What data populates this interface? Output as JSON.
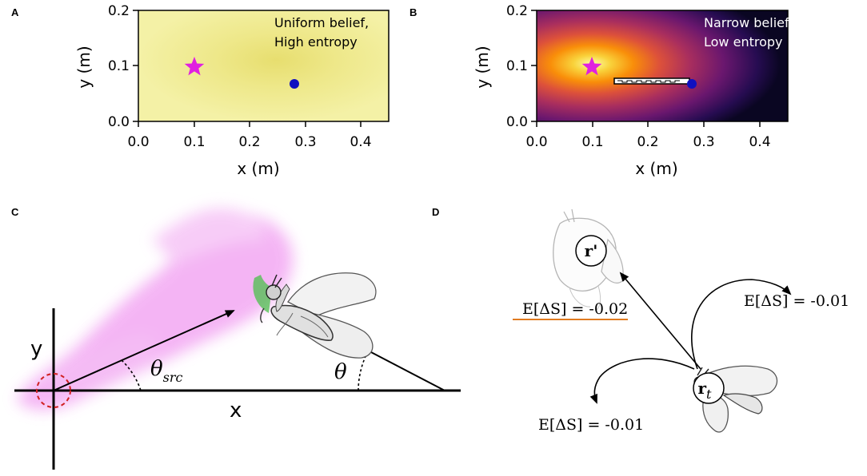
{
  "panels": {
    "a": {
      "letter": "A",
      "annotation_line1": "Uniform belief,",
      "annotation_line2": "High entropy",
      "xlabel": "x (m)",
      "ylabel": "y (m)",
      "xticks": [
        "0.0",
        "0.1",
        "0.2",
        "0.3",
        "0.4"
      ],
      "yticks": [
        "0.0",
        "0.1",
        "0.2"
      ],
      "background_color": "#f3f0a0",
      "source_marker": {
        "x": 0.1,
        "y": 0.1,
        "color": "#e020e0",
        "shape": "star"
      },
      "agent_marker": {
        "x": 0.28,
        "y": 0.067,
        "color": "#1010c0",
        "shape": "circle"
      }
    },
    "b": {
      "letter": "B",
      "annotation_line1": "Narrow belief,",
      "annotation_line2": "Low entropy",
      "xlabel": "x (m)",
      "ylabel": "y (m)",
      "xticks": [
        "0.0",
        "0.1",
        "0.2",
        "0.3",
        "0.4"
      ],
      "yticks": [
        "0.0",
        "0.1",
        "0.2"
      ],
      "colormap": "inferno",
      "source_marker": {
        "x": 0.1,
        "y": 0.1,
        "color": "#e020e0",
        "shape": "star"
      },
      "agent_marker": {
        "x": 0.28,
        "y": 0.067,
        "color": "#1010c0",
        "shape": "circle"
      }
    },
    "c": {
      "letter": "C",
      "y_axis_label": "y",
      "x_axis_label": "x",
      "theta_src_main": "θ",
      "theta_src_sub": "src",
      "theta_label": "θ",
      "plume_color": "#f0a0f0",
      "source_circle_color": "#d02020",
      "sensor_wedge_color": "#40c040"
    },
    "d": {
      "letter": "D",
      "label_r_prime": "r'",
      "label_r_t_main": "r",
      "label_r_t_sub": "t",
      "expected_change_left": "E[ΔS] = -0.02",
      "expected_change_right": "E[ΔS] = -0.01",
      "expected_change_bottom": "E[ΔS] = -0.01",
      "highlight_color": "#e07a20"
    }
  }
}
